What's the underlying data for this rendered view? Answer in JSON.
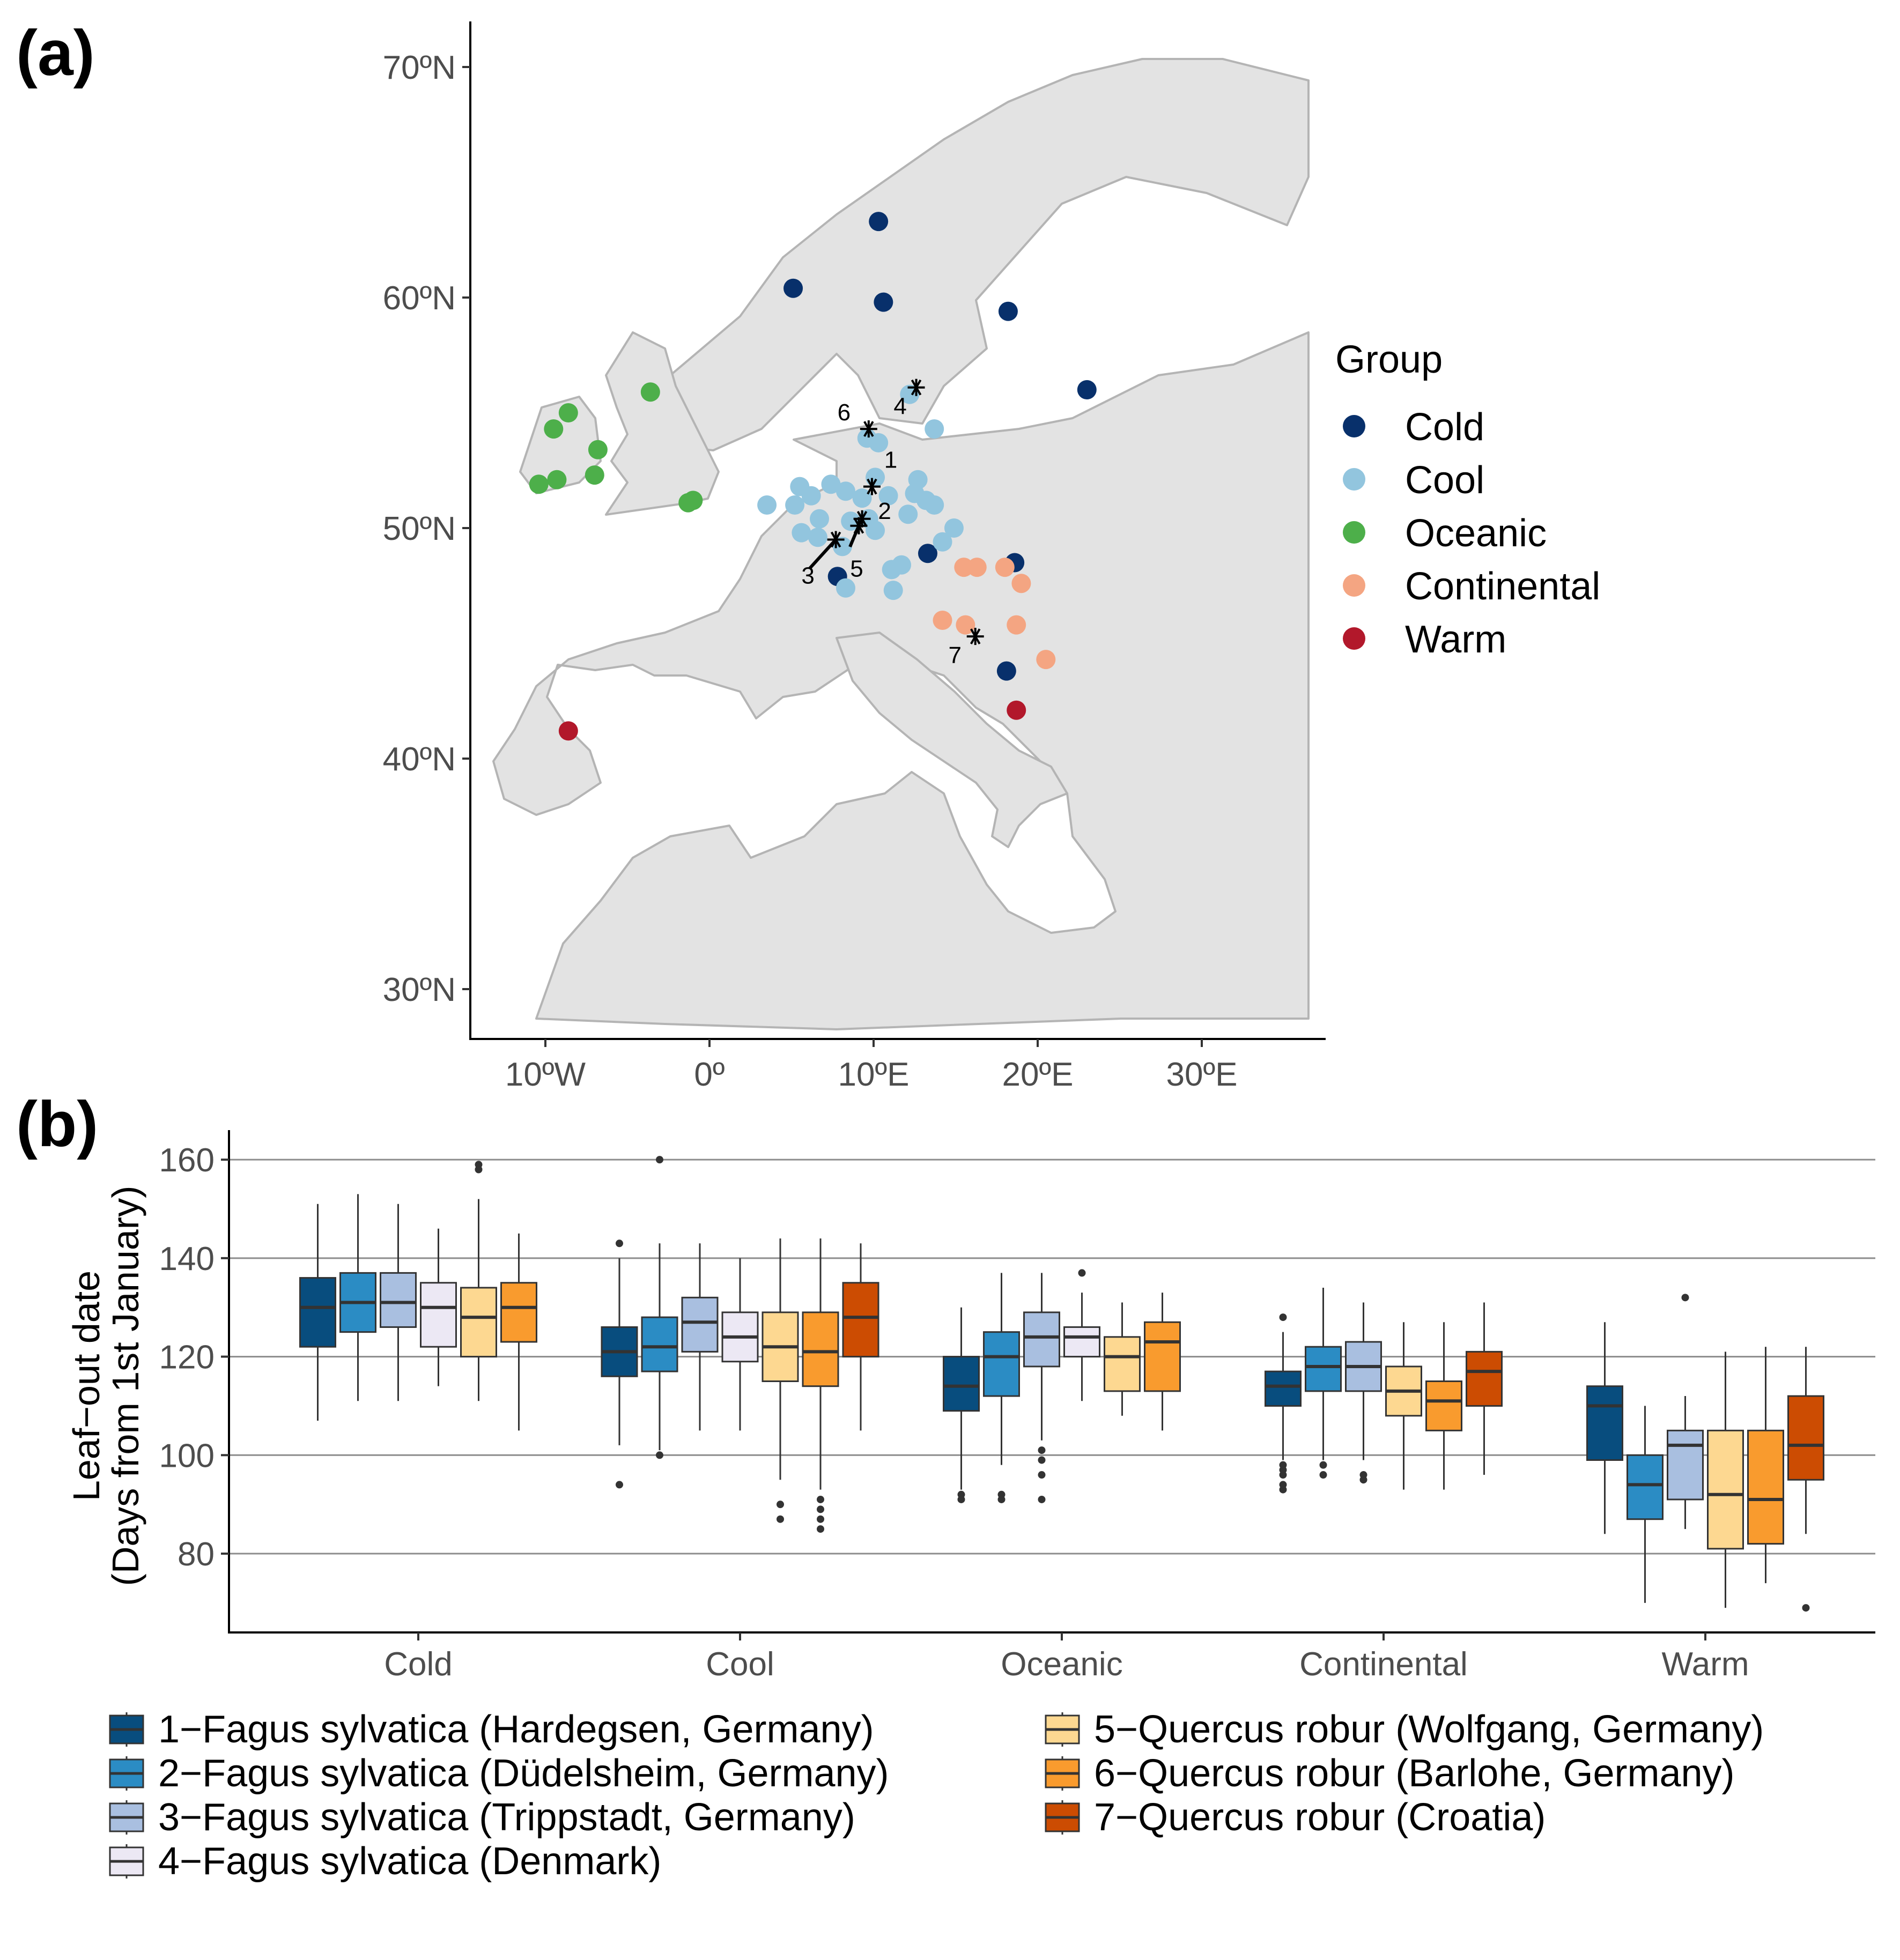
{
  "panel_a": {
    "label": "(a)",
    "y_ticks": [
      "70ºN",
      "60ºN",
      "50ºN",
      "40ºN",
      "30ºN"
    ],
    "x_ticks": [
      "10ºW",
      "0º",
      "10ºE",
      "20ºE",
      "30ºE"
    ],
    "legend": {
      "title": "Group",
      "items": [
        {
          "label": "Cold",
          "color": "#08306b"
        },
        {
          "label": "Cool",
          "color": "#92c5de"
        },
        {
          "label": "Oceanic",
          "color": "#4daf4a"
        },
        {
          "label": "Continental",
          "color": "#f4a582"
        },
        {
          "label": "Warm",
          "color": "#b2182b"
        }
      ]
    },
    "sites": [
      {
        "group": "Cold",
        "lon": 10.3,
        "lat": 63.3
      },
      {
        "group": "Cold",
        "lon": 5.1,
        "lat": 60.4
      },
      {
        "group": "Cold",
        "lon": 10.6,
        "lat": 59.8
      },
      {
        "group": "Cold",
        "lon": 18.2,
        "lat": 59.4
      },
      {
        "group": "Cold",
        "lon": 23.0,
        "lat": 56.0
      },
      {
        "group": "Cold",
        "lon": 13.3,
        "lat": 48.9
      },
      {
        "group": "Cold",
        "lon": 18.6,
        "lat": 48.5
      },
      {
        "group": "Cold",
        "lon": 7.8,
        "lat": 47.9
      },
      {
        "group": "Cold",
        "lon": 18.1,
        "lat": 43.8
      },
      {
        "group": "Cool",
        "lon": 9.6,
        "lat": 53.9
      },
      {
        "group": "Cool",
        "lon": 10.3,
        "lat": 53.7
      },
      {
        "group": "Cool",
        "lon": 13.7,
        "lat": 54.3
      },
      {
        "group": "Cool",
        "lon": 12.2,
        "lat": 55.8
      },
      {
        "group": "Cool",
        "lon": 3.5,
        "lat": 51.0
      },
      {
        "group": "Cool",
        "lon": 5.5,
        "lat": 51.8
      },
      {
        "group": "Cool",
        "lon": 6.2,
        "lat": 51.4
      },
      {
        "group": "Cool",
        "lon": 7.4,
        "lat": 51.9
      },
      {
        "group": "Cool",
        "lon": 8.3,
        "lat": 51.6
      },
      {
        "group": "Cool",
        "lon": 9.3,
        "lat": 51.3
      },
      {
        "group": "Cool",
        "lon": 10.1,
        "lat": 52.2
      },
      {
        "group": "Cool",
        "lon": 10.9,
        "lat": 51.4
      },
      {
        "group": "Cool",
        "lon": 12.7,
        "lat": 52.1
      },
      {
        "group": "Cool",
        "lon": 12.5,
        "lat": 51.5
      },
      {
        "group": "Cool",
        "lon": 13.2,
        "lat": 51.2
      },
      {
        "group": "Cool",
        "lon": 13.7,
        "lat": 51.0
      },
      {
        "group": "Cool",
        "lon": 12.1,
        "lat": 50.6
      },
      {
        "group": "Cool",
        "lon": 5.2,
        "lat": 51.0
      },
      {
        "group": "Cool",
        "lon": 6.7,
        "lat": 50.4
      },
      {
        "group": "Cool",
        "lon": 8.6,
        "lat": 50.3
      },
      {
        "group": "Cool",
        "lon": 9.7,
        "lat": 50.4
      },
      {
        "group": "Cool",
        "lon": 10.1,
        "lat": 49.9
      },
      {
        "group": "Cool",
        "lon": 5.6,
        "lat": 49.8
      },
      {
        "group": "Cool",
        "lon": 6.6,
        "lat": 49.6
      },
      {
        "group": "Cool",
        "lon": 8.1,
        "lat": 49.2
      },
      {
        "group": "Cool",
        "lon": 14.2,
        "lat": 49.4
      },
      {
        "group": "Cool",
        "lon": 14.9,
        "lat": 50.0
      },
      {
        "group": "Cool",
        "lon": 11.1,
        "lat": 48.2
      },
      {
        "group": "Cool",
        "lon": 11.7,
        "lat": 48.4
      },
      {
        "group": "Cool",
        "lon": 11.2,
        "lat": 47.3
      },
      {
        "group": "Cool",
        "lon": 8.3,
        "lat": 47.4
      },
      {
        "group": "Oceanic",
        "lon": -8.6,
        "lat": 55.0
      },
      {
        "group": "Oceanic",
        "lon": -9.5,
        "lat": 54.3
      },
      {
        "group": "Oceanic",
        "lon": -6.8,
        "lat": 53.4
      },
      {
        "group": "Oceanic",
        "lon": -7.0,
        "lat": 52.3
      },
      {
        "group": "Oceanic",
        "lon": -9.3,
        "lat": 52.1
      },
      {
        "group": "Oceanic",
        "lon": -10.4,
        "lat": 51.9
      },
      {
        "group": "Oceanic",
        "lon": -3.6,
        "lat": 55.9
      },
      {
        "group": "Oceanic",
        "lon": -1.0,
        "lat": 51.2
      },
      {
        "group": "Oceanic",
        "lon": -1.3,
        "lat": 51.1
      },
      {
        "group": "Continental",
        "lon": 15.5,
        "lat": 48.3
      },
      {
        "group": "Continental",
        "lon": 16.3,
        "lat": 48.3
      },
      {
        "group": "Continental",
        "lon": 18.0,
        "lat": 48.3
      },
      {
        "group": "Continental",
        "lon": 19.0,
        "lat": 47.6
      },
      {
        "group": "Continental",
        "lon": 14.2,
        "lat": 46.0
      },
      {
        "group": "Continental",
        "lon": 15.6,
        "lat": 45.8
      },
      {
        "group": "Continental",
        "lon": 18.7,
        "lat": 45.8
      },
      {
        "group": "Continental",
        "lon": 20.5,
        "lat": 44.3
      },
      {
        "group": "Warm",
        "lon": -8.6,
        "lat": 41.2
      },
      {
        "group": "Warm",
        "lon": 18.7,
        "lat": 42.1
      }
    ],
    "provenances": [
      {
        "label": "1",
        "lon": 9.9,
        "lat": 51.8
      },
      {
        "label": "2",
        "lon": 9.3,
        "lat": 50.4
      },
      {
        "label": "3",
        "lon": 7.7,
        "lat": 49.5
      },
      {
        "label": "4",
        "lon": 12.6,
        "lat": 56.1
      },
      {
        "label": "5",
        "lon": 9.1,
        "lat": 50.1
      },
      {
        "label": "6",
        "lon": 9.7,
        "lat": 54.3
      },
      {
        "label": "7",
        "lon": 16.2,
        "lat": 45.3
      }
    ]
  },
  "panel_b": {
    "label": "(b)",
    "chart_data": {
      "type": "box",
      "ylabel": "Leaf−out date",
      "ylabel2": "(Days from 1st January)",
      "ylim": [
        64,
        166
      ],
      "yticks": [
        80,
        100,
        120,
        140,
        160
      ],
      "categories": [
        "Cold",
        "Cool",
        "Oceanic",
        "Continental",
        "Warm"
      ],
      "grid": true,
      "legend_position": "bottom",
      "series": [
        {
          "name": "1−Fagus sylvatica (Hardegsen, Germany)",
          "color": "#084d7e",
          "boxes": [
            {
              "category": "Cold",
              "lower": 107,
              "q1": 122,
              "median": 130,
              "q3": 136,
              "upper": 151,
              "outliers": []
            },
            {
              "category": "Cool",
              "lower": 102,
              "q1": 116,
              "median": 121,
              "q3": 126,
              "upper": 140,
              "outliers": [
                94,
                143
              ]
            },
            {
              "category": "Oceanic",
              "lower": 93,
              "q1": 109,
              "median": 114,
              "q3": 120,
              "upper": 130,
              "outliers": [
                91,
                92
              ]
            },
            {
              "category": "Continental",
              "lower": 99,
              "q1": 110,
              "median": 114,
              "q3": 117,
              "upper": 125,
              "outliers": [
                93,
                94,
                96,
                97,
                98,
                128
              ]
            },
            {
              "category": "Warm",
              "lower": 84,
              "q1": 99,
              "median": 110,
              "q3": 114,
              "upper": 127,
              "outliers": []
            }
          ]
        },
        {
          "name": "2−Fagus sylvatica (Düdelsheim, Germany)",
          "color": "#2b8cc4",
          "boxes": [
            {
              "category": "Cold",
              "lower": 111,
              "q1": 125,
              "median": 131,
              "q3": 137,
              "upper": 153,
              "outliers": []
            },
            {
              "category": "Cool",
              "lower": 101,
              "q1": 117,
              "median": 122,
              "q3": 128,
              "upper": 143,
              "outliers": [
                100,
                160
              ]
            },
            {
              "category": "Oceanic",
              "lower": 98,
              "q1": 112,
              "median": 120,
              "q3": 125,
              "upper": 137,
              "outliers": [
                91,
                92
              ]
            },
            {
              "category": "Continental",
              "lower": 99,
              "q1": 113,
              "median": 118,
              "q3": 122,
              "upper": 134,
              "outliers": [
                96,
                98
              ]
            },
            {
              "category": "Warm",
              "lower": 70,
              "q1": 87,
              "median": 94,
              "q3": 100,
              "upper": 110,
              "outliers": []
            }
          ]
        },
        {
          "name": "3−Fagus sylvatica (Trippstadt, Germany)",
          "color": "#a9bfe0",
          "boxes": [
            {
              "category": "Cold",
              "lower": 111,
              "q1": 126,
              "median": 131,
              "q3": 137,
              "upper": 151,
              "outliers": []
            },
            {
              "category": "Cool",
              "lower": 105,
              "q1": 121,
              "median": 127,
              "q3": 132,
              "upper": 143,
              "outliers": []
            },
            {
              "category": "Oceanic",
              "lower": 103,
              "q1": 118,
              "median": 124,
              "q3": 129,
              "upper": 137,
              "outliers": [
                91,
                96,
                99,
                101
              ]
            },
            {
              "category": "Continental",
              "lower": 99,
              "q1": 113,
              "median": 118,
              "q3": 123,
              "upper": 131,
              "outliers": [
                95,
                96
              ]
            },
            {
              "category": "Warm",
              "lower": 85,
              "q1": 91,
              "median": 102,
              "q3": 105,
              "upper": 112,
              "outliers": [
                132
              ]
            }
          ]
        },
        {
          "name": "4−Fagus sylvatica (Denmark)",
          "color": "#ece8f4",
          "boxes": [
            {
              "category": "Cold",
              "lower": 114,
              "q1": 122,
              "median": 130,
              "q3": 135,
              "upper": 146,
              "outliers": []
            },
            {
              "category": "Cool",
              "lower": 105,
              "q1": 119,
              "median": 124,
              "q3": 129,
              "upper": 140,
              "outliers": []
            },
            {
              "category": "Oceanic",
              "lower": 111,
              "q1": 120,
              "median": 124,
              "q3": 126,
              "upper": 133,
              "outliers": [
                137
              ]
            }
          ]
        },
        {
          "name": "5−Quercus robur (Wolfgang, Germany)",
          "color": "#fdd891",
          "boxes": [
            {
              "category": "Cold",
              "lower": 111,
              "q1": 120,
              "median": 128,
              "q3": 134,
              "upper": 152,
              "outliers": [
                158,
                159
              ]
            },
            {
              "category": "Cool",
              "lower": 95,
              "q1": 115,
              "median": 122,
              "q3": 129,
              "upper": 144,
              "outliers": [
                87,
                90
              ]
            },
            {
              "category": "Oceanic",
              "lower": 108,
              "q1": 113,
              "median": 120,
              "q3": 124,
              "upper": 131,
              "outliers": []
            },
            {
              "category": "Continental",
              "lower": 93,
              "q1": 108,
              "median": 113,
              "q3": 118,
              "upper": 127,
              "outliers": []
            },
            {
              "category": "Warm",
              "lower": 69,
              "q1": 81,
              "median": 92,
              "q3": 105,
              "upper": 121,
              "outliers": []
            }
          ]
        },
        {
          "name": "6−Quercus robur (Barlohe, Germany)",
          "color": "#f99b2e",
          "boxes": [
            {
              "category": "Cold",
              "lower": 105,
              "q1": 123,
              "median": 130,
              "q3": 135,
              "upper": 145,
              "outliers": []
            },
            {
              "category": "Cool",
              "lower": 93,
              "q1": 114,
              "median": 121,
              "q3": 129,
              "upper": 144,
              "outliers": [
                85,
                87,
                89,
                91
              ]
            },
            {
              "category": "Oceanic",
              "lower": 105,
              "q1": 113,
              "median": 123,
              "q3": 127,
              "upper": 133,
              "outliers": []
            },
            {
              "category": "Continental",
              "lower": 93,
              "q1": 105,
              "median": 111,
              "q3": 115,
              "upper": 127,
              "outliers": []
            },
            {
              "category": "Warm",
              "lower": 74,
              "q1": 82,
              "median": 91,
              "q3": 105,
              "upper": 122,
              "outliers": []
            }
          ]
        },
        {
          "name": "7−Quercus robur (Croatia)",
          "color": "#cc4c02",
          "boxes": [
            {
              "category": "Cool",
              "lower": 105,
              "q1": 120,
              "median": 128,
              "q3": 135,
              "upper": 143,
              "outliers": []
            },
            {
              "category": "Continental",
              "lower": 96,
              "q1": 110,
              "median": 117,
              "q3": 121,
              "upper": 131,
              "outliers": []
            },
            {
              "category": "Warm",
              "lower": 84,
              "q1": 95,
              "median": 102,
              "q3": 112,
              "upper": 122,
              "outliers": [
                69
              ]
            }
          ]
        }
      ]
    }
  }
}
